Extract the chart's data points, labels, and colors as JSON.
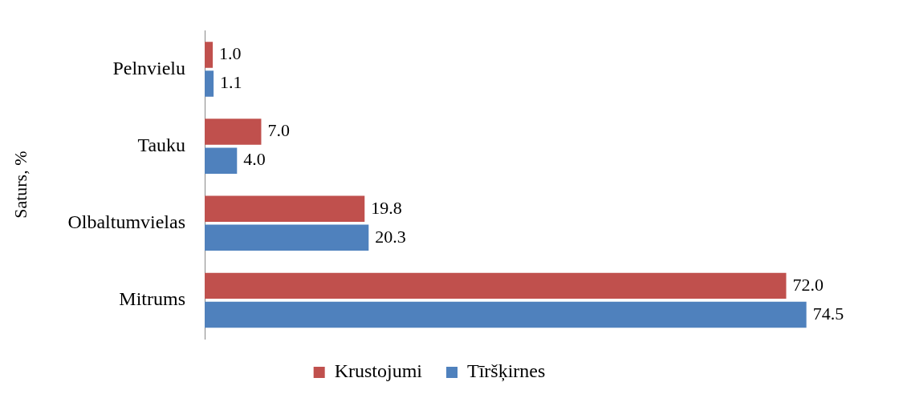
{
  "chart_data": {
    "type": "bar",
    "orientation": "horizontal",
    "ylabel": "Saturs, %",
    "categories": [
      "Pelnvielu",
      "Tauku",
      "Olbaltumvielas",
      "Mitrums"
    ],
    "series": [
      {
        "name": "Krustojumi",
        "color": "#c0504d",
        "values": [
          1.0,
          7.0,
          19.8,
          72.0
        ],
        "value_labels": [
          "1.0",
          "7.0",
          "19.8",
          "72.0"
        ]
      },
      {
        "name": "Tīršķirnes",
        "color": "#4f81bd",
        "values": [
          1.1,
          4.0,
          20.3,
          74.5
        ],
        "value_labels": [
          "1.1",
          "4.0",
          "20.3",
          "74.5"
        ]
      }
    ],
    "grid": false,
    "legend": "bottom",
    "tick_labels": "y"
  }
}
